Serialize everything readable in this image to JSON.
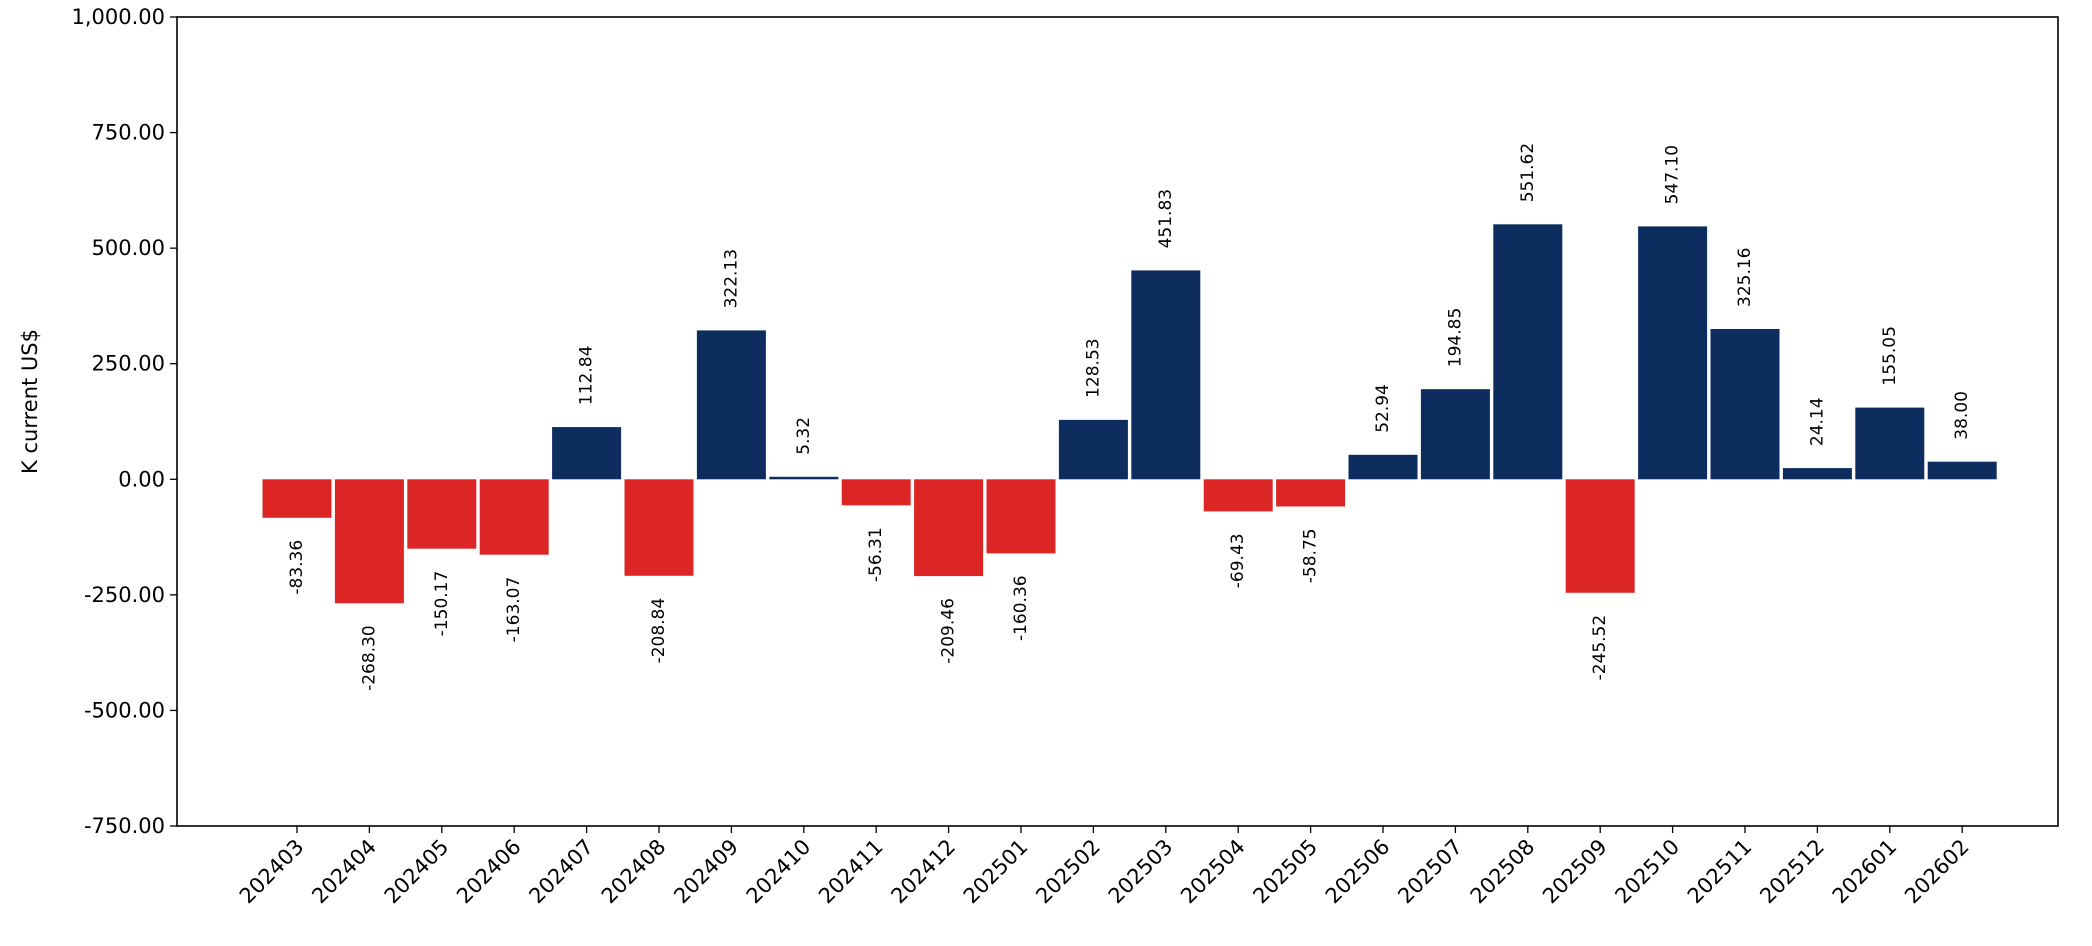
{
  "chart_data": {
    "type": "bar",
    "title": "",
    "xlabel": "",
    "ylabel": "K current US$",
    "ylim": [
      -750,
      1000
    ],
    "yticks": [
      -750,
      -500,
      -250,
      0,
      250,
      500,
      750,
      1000
    ],
    "ytick_labels": [
      "-750.00",
      "-500.00",
      "-250.00",
      "0.00",
      "250.00",
      "500.00",
      "750.00",
      "1,000.00"
    ],
    "grid": false,
    "legend": "none",
    "colors": {
      "positive": "#0d2d5e",
      "negative": "#dc2626"
    },
    "categories": [
      "202403",
      "202404",
      "202405",
      "202406",
      "202407",
      "202408",
      "202409",
      "202410",
      "202411",
      "202412",
      "202501",
      "202502",
      "202503",
      "202504",
      "202505",
      "202506",
      "202507",
      "202508",
      "202509",
      "202510",
      "202511",
      "202512",
      "202601",
      "202602"
    ],
    "values": [
      -83.36,
      -268.3,
      -150.17,
      -163.07,
      112.84,
      -208.84,
      322.13,
      5.32,
      -56.31,
      -209.46,
      -160.36,
      128.53,
      451.83,
      -69.43,
      -58.75,
      52.94,
      194.85,
      551.62,
      -245.52,
      547.1,
      325.16,
      24.14,
      155.05,
      38.0
    ],
    "value_labels": [
      "-83.36",
      "-268.30",
      "-150.17",
      "-163.07",
      "112.84",
      "-208.84",
      "322.13",
      "5.32",
      "-56.31",
      "-209.46",
      "-160.36",
      "128.53",
      "451.83",
      "-69.43",
      "-58.75",
      "52.94",
      "194.85",
      "551.62",
      "-245.52",
      "547.10",
      "325.16",
      "24.14",
      "155.05",
      "38.00"
    ]
  }
}
